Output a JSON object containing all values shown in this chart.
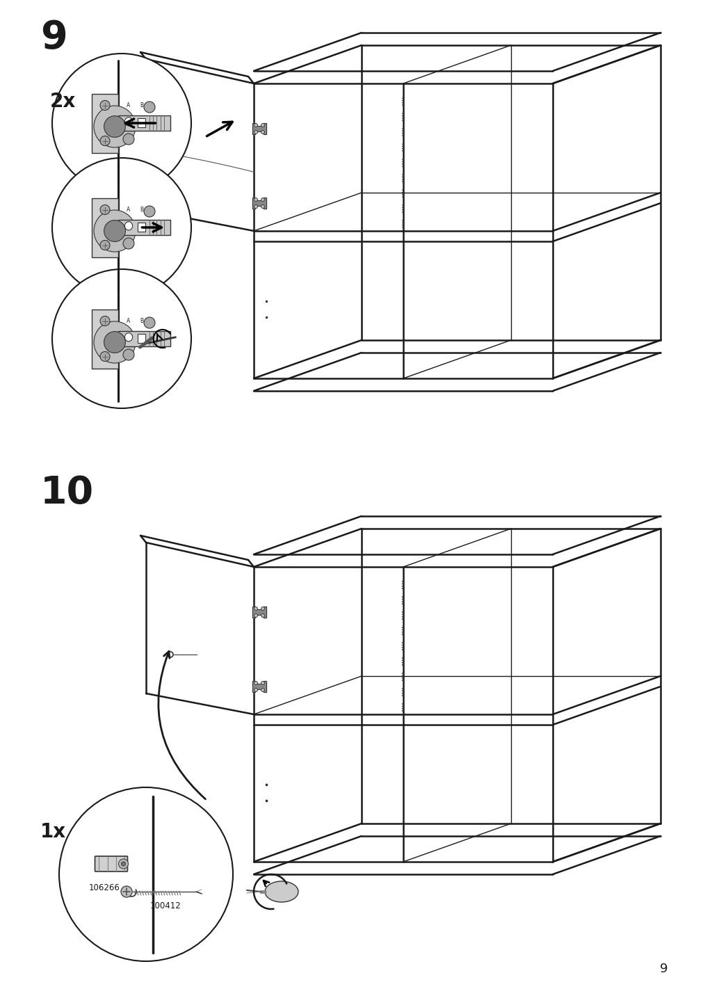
{
  "page_number": "9",
  "background_color": "#ffffff",
  "line_color": "#1a1a1a",
  "step9_label": "9",
  "step10_label": "10",
  "qty_2x": "2x",
  "qty_1x": "1x",
  "part_106266": "106266",
  "part_100412": "100412",
  "page_footer": "9",
  "lw_main": 1.8,
  "lw_thin": 1.0,
  "lw_thick": 2.5
}
